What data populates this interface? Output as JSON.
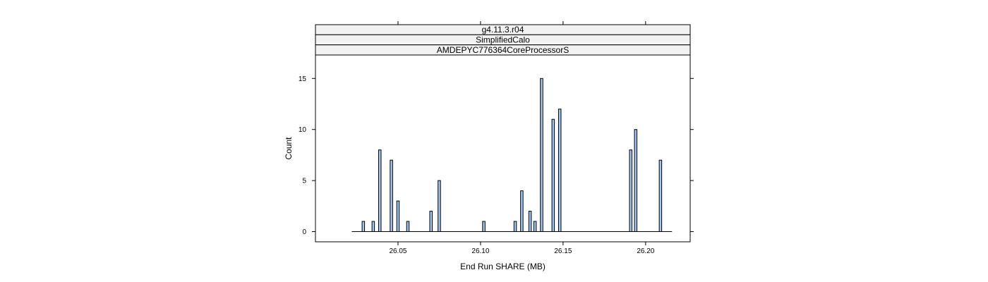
{
  "chart_data": {
    "type": "bar",
    "strips": [
      "g4.11.3.r04",
      "SimplifiedCalo",
      "AMDEPYC776364CoreProcessorS"
    ],
    "xlabel": "End Run SHARE (MB)",
    "ylabel": "Count",
    "xlim": [
      26.0,
      26.227
    ],
    "ylim": [
      -1,
      17.3
    ],
    "x_ticks": [
      26.05,
      26.1,
      26.15,
      26.2
    ],
    "x_tick_labels": [
      "26.05",
      "26.10",
      "26.15",
      "26.20"
    ],
    "y_ticks": [
      0,
      5,
      10,
      15
    ],
    "y_tick_labels": [
      "0",
      "5",
      "10",
      "15"
    ],
    "baseline": [
      26.022,
      26.216
    ],
    "bar_width": 0.0015,
    "bars": {
      "x": [
        26.029,
        26.035,
        26.039,
        26.046,
        26.05,
        26.056,
        26.07,
        26.075,
        26.102,
        26.121,
        26.125,
        26.13,
        26.133,
        26.137,
        26.144,
        26.148,
        26.191,
        26.194,
        26.209
      ],
      "y": [
        1,
        1,
        8,
        7,
        3,
        1,
        2,
        5,
        1,
        1,
        4,
        2,
        1,
        15,
        11,
        12,
        8,
        10,
        7
      ]
    },
    "colors": {
      "bar_fill": "#9fc8f5",
      "bar_stroke": "#000000",
      "strip_fill": "#f2f2f2"
    },
    "grid": false
  }
}
